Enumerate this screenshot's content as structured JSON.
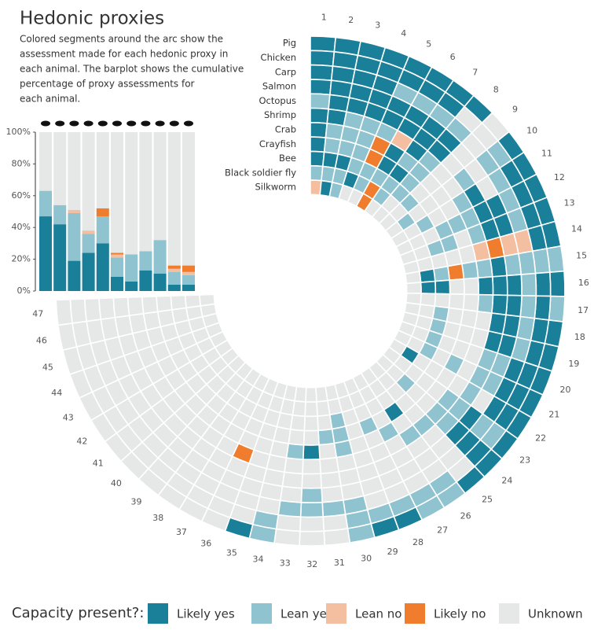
{
  "title": "Hedonic proxies",
  "description": [
    "Colored segments around the arc show the",
    "assessment made for each hedonic proxy in",
    "each animal. The barplot shows the cumulative",
    "percentage of proxy assessments for",
    "each animal."
  ],
  "legend_title": "Capacity present?:",
  "chart_data": [
    {
      "type": "radial-heatmap",
      "levels": [
        {
          "name": "Likely yes",
          "color": "#1a7f99"
        },
        {
          "name": "Lean yes",
          "color": "#8fc3cf"
        },
        {
          "name": "Lean no",
          "color": "#f3bfa0"
        },
        {
          "name": "Likely no",
          "color": "#ef7d2d"
        },
        {
          "name": "Unknown",
          "color": "#e6e7e7"
        }
      ],
      "rows": [
        "Pig",
        "Chicken",
        "Carp",
        "Salmon",
        "Octopus",
        "Shrimp",
        "Crab",
        "Crayfish",
        "Bee",
        "Black soldier fly",
        "Silkworm"
      ],
      "columns": [
        1,
        2,
        3,
        4,
        5,
        6,
        7,
        8,
        9,
        10,
        11,
        12,
        13,
        14,
        15,
        16,
        17,
        18,
        19,
        20,
        21,
        22,
        23,
        24,
        25,
        26,
        27,
        28,
        29,
        30,
        31,
        32,
        33,
        34,
        35,
        36,
        37,
        38,
        39,
        40,
        41,
        42,
        43,
        44,
        45,
        46,
        47
      ],
      "values": [
        [
          0,
          0,
          0,
          0,
          0,
          0,
          0,
          0,
          4,
          0,
          0,
          0,
          0,
          0,
          1,
          0,
          1,
          0,
          0,
          0,
          0,
          0,
          0,
          0,
          0,
          1,
          1,
          0,
          0,
          1,
          4,
          4,
          4,
          1,
          0,
          4,
          4,
          4,
          4,
          4,
          4,
          4,
          4,
          4,
          4,
          4,
          4
        ],
        [
          0,
          0,
          0,
          0,
          0,
          0,
          0,
          4,
          4,
          1,
          0,
          0,
          0,
          0,
          1,
          0,
          0,
          0,
          0,
          0,
          0,
          0,
          1,
          0,
          4,
          1,
          1,
          1,
          1,
          1,
          4,
          4,
          4,
          1,
          4,
          4,
          4,
          4,
          4,
          4,
          4,
          4,
          4,
          4,
          4,
          4,
          4
        ],
        [
          0,
          0,
          0,
          0,
          1,
          1,
          1,
          1,
          4,
          1,
          1,
          1,
          1,
          2,
          1,
          1,
          1,
          1,
          1,
          0,
          0,
          0,
          1,
          0,
          4,
          4,
          4,
          4,
          4,
          1,
          1,
          1,
          1,
          4,
          4,
          4,
          4,
          4,
          4,
          4,
          4,
          4,
          4,
          4,
          4,
          4,
          4
        ],
        [
          0,
          0,
          0,
          0,
          0,
          0,
          0,
          0,
          4,
          4,
          4,
          0,
          0,
          2,
          1,
          0,
          0,
          0,
          0,
          1,
          1,
          4,
          0,
          0,
          4,
          4,
          4,
          4,
          4,
          4,
          4,
          1,
          4,
          4,
          4,
          4,
          4,
          4,
          4,
          4,
          4,
          4,
          4,
          4,
          4,
          4,
          4
        ],
        [
          1,
          0,
          0,
          0,
          0,
          0,
          0,
          0,
          4,
          1,
          0,
          0,
          0,
          3,
          0,
          0,
          0,
          0,
          0,
          1,
          1,
          1,
          1,
          1,
          4,
          4,
          4,
          4,
          4,
          4,
          4,
          4,
          4,
          4,
          4,
          4,
          4,
          4,
          4,
          4,
          4,
          4,
          4,
          4,
          4,
          4,
          4
        ],
        [
          0,
          0,
          1,
          1,
          1,
          2,
          0,
          1,
          4,
          4,
          1,
          1,
          1,
          2,
          1,
          0,
          1,
          4,
          4,
          4,
          4,
          4,
          1,
          1,
          1,
          1,
          4,
          4,
          4,
          4,
          4,
          4,
          4,
          4,
          4,
          3,
          4,
          4,
          4,
          4,
          4,
          4,
          4,
          4,
          4,
          4,
          4
        ],
        [
          0,
          1,
          1,
          1,
          3,
          0,
          1,
          1,
          4,
          4,
          4,
          1,
          4,
          4,
          1,
          4,
          4,
          4,
          4,
          4,
          1,
          4,
          4,
          4,
          4,
          4,
          1,
          4,
          4,
          1,
          4,
          0,
          1,
          4,
          4,
          4,
          4,
          4,
          4,
          4,
          4,
          4,
          4,
          4,
          4,
          4,
          4
        ],
        [
          0,
          1,
          1,
          1,
          3,
          0,
          0,
          1,
          4,
          4,
          4,
          1,
          1,
          4,
          3,
          4,
          4,
          4,
          4,
          4,
          4,
          4,
          4,
          4,
          4,
          0,
          4,
          1,
          4,
          1,
          1,
          4,
          4,
          4,
          4,
          4,
          4,
          4,
          4,
          4,
          4,
          4,
          4,
          4,
          4,
          4,
          4
        ],
        [
          0,
          0,
          0,
          1,
          1,
          1,
          1,
          1,
          1,
          4,
          1,
          4,
          1,
          4,
          1,
          0,
          4,
          1,
          1,
          1,
          1,
          4,
          4,
          1,
          4,
          4,
          4,
          4,
          4,
          1,
          4,
          4,
          4,
          4,
          4,
          4,
          4,
          4,
          4,
          4,
          4,
          4,
          4,
          4,
          4,
          4,
          4
        ],
        [
          1,
          1,
          1,
          0,
          1,
          3,
          1,
          4,
          4,
          1,
          4,
          4,
          4,
          4,
          0,
          0,
          4,
          4,
          4,
          4,
          4,
          0,
          4,
          4,
          4,
          4,
          4,
          4,
          4,
          4,
          4,
          4,
          4,
          4,
          4,
          4,
          4,
          4,
          4,
          4,
          4,
          4,
          4,
          4,
          4,
          4,
          4
        ],
        [
          2,
          0,
          1,
          4,
          4,
          3,
          4,
          4,
          4,
          4,
          4,
          4,
          4,
          4,
          4,
          4,
          4,
          4,
          4,
          4,
          4,
          4,
          4,
          4,
          4,
          4,
          4,
          4,
          4,
          4,
          4,
          4,
          4,
          4,
          4,
          4,
          4,
          4,
          4,
          4,
          4,
          4,
          4,
          4,
          4,
          4,
          4
        ]
      ]
    },
    {
      "type": "bar",
      "ylim": [
        0,
        100
      ],
      "yticks": [
        {
          "value": 0,
          "label": "0%"
        },
        {
          "value": 20,
          "label": "20%"
        },
        {
          "value": 40,
          "label": "40%"
        },
        {
          "value": 60,
          "label": "60%"
        },
        {
          "value": 80,
          "label": "80%"
        },
        {
          "value": 100,
          "label": "100%"
        }
      ],
      "background": "#e6e7e7",
      "series": [
        {
          "color": "#1a7f99",
          "values": [
            47,
            42,
            19,
            24,
            30,
            9,
            6,
            13,
            11,
            4,
            4
          ]
        },
        {
          "color": "#8fc3cf",
          "values": [
            16,
            12,
            30,
            12,
            17,
            12,
            17,
            12,
            21,
            8,
            6
          ]
        },
        {
          "color": "#f3bfa0",
          "values": [
            0,
            0,
            2,
            2,
            0,
            2,
            0,
            0,
            0,
            2,
            2
          ]
        },
        {
          "color": "#ef7d2d",
          "values": [
            0,
            0,
            0,
            0,
            5,
            1,
            0,
            0,
            0,
            2,
            4
          ]
        }
      ]
    }
  ]
}
